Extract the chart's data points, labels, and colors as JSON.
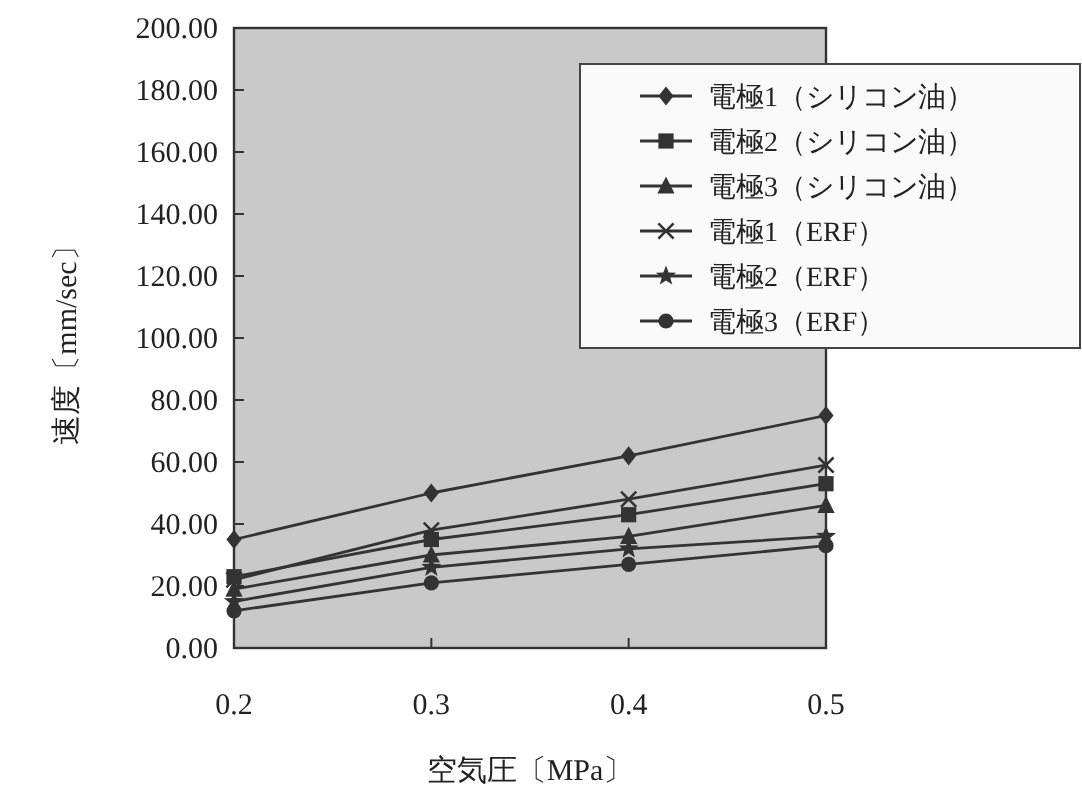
{
  "chart_data": {
    "type": "line",
    "xlabel": "空気圧〔MPa〕",
    "ylabel": "速度〔mm/sec〕",
    "x": [
      0.2,
      0.3,
      0.4,
      0.5
    ],
    "xlim": [
      0.2,
      0.5
    ],
    "xticks": [
      0.2,
      0.3,
      0.4,
      0.5
    ],
    "ylim": [
      0,
      200
    ],
    "yticks": [
      {
        "value": 0,
        "label": "0.00"
      },
      {
        "value": 20,
        "label": "20.00"
      },
      {
        "value": 40,
        "label": "40.00"
      },
      {
        "value": 60,
        "label": "60.00"
      },
      {
        "value": 80,
        "label": "80.00"
      },
      {
        "value": 100,
        "label": "100.00"
      },
      {
        "value": 120,
        "label": "120.00"
      },
      {
        "value": 140,
        "label": "140.00"
      },
      {
        "value": 160,
        "label": "160.00"
      },
      {
        "value": 180,
        "label": "180.00"
      },
      {
        "value": 200,
        "label": "200.00"
      }
    ],
    "grid": false,
    "legend": "top right",
    "line_style": "solid",
    "series": [
      {
        "name": "電極1（シリコン油）",
        "color": "#333333",
        "marker": "diamond",
        "values": [
          35,
          50,
          62,
          75
        ]
      },
      {
        "name": "電極2（シリコン油）",
        "color": "#333333",
        "marker": "square",
        "values": [
          23,
          35,
          43,
          53
        ]
      },
      {
        "name": "電極3（シリコン油）",
        "color": "#333333",
        "marker": "triangle",
        "values": [
          19,
          30,
          36,
          46
        ]
      },
      {
        "name": "電極1（ERF）",
        "color": "#333333",
        "marker": "cross",
        "values": [
          22,
          38,
          48,
          59
        ]
      },
      {
        "name": "電極2（ERF）",
        "color": "#333333",
        "marker": "star",
        "values": [
          15,
          26,
          32,
          36
        ]
      },
      {
        "name": "電極3（ERF）",
        "color": "#333333",
        "marker": "circle",
        "values": [
          12,
          21,
          27,
          33
        ]
      }
    ]
  }
}
